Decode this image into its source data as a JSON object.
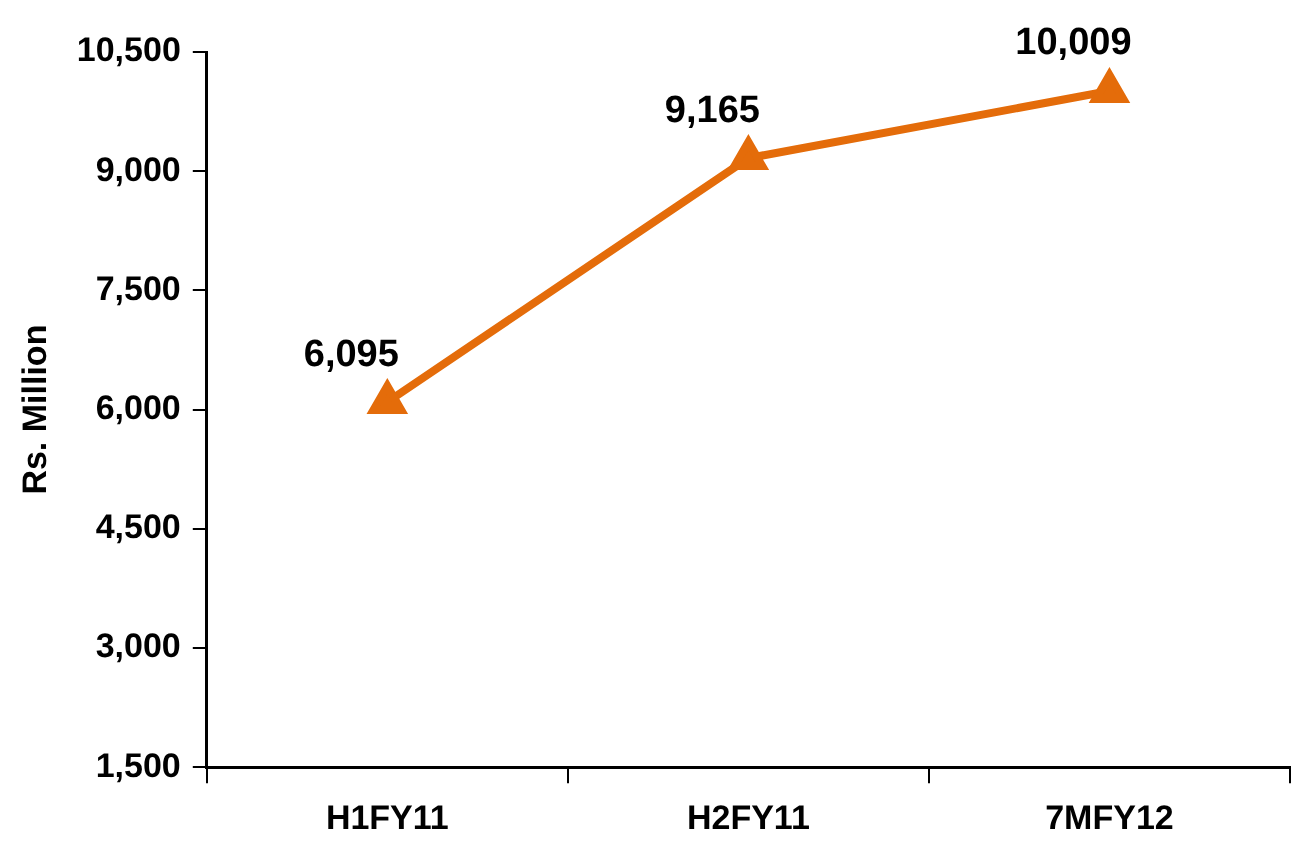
{
  "chart_data": {
    "type": "line",
    "ylabel": "Rs. Million",
    "categories": [
      "H1FY11",
      "H2FY11",
      "7MFY12"
    ],
    "values": [
      6095,
      9165,
      10009
    ],
    "value_labels": [
      "6,095",
      "9,165",
      "10,009"
    ],
    "color": "#e46c0a",
    "marker": "triangle",
    "line_style": "solid",
    "ylim": [
      1500,
      10500
    ],
    "yticks": [
      {
        "value": 1500,
        "label": "1,500"
      },
      {
        "value": 3000,
        "label": "3,000"
      },
      {
        "value": 4500,
        "label": "4,500"
      },
      {
        "value": 6000,
        "label": "6,000"
      },
      {
        "value": 7500,
        "label": "7,500"
      },
      {
        "value": 9000,
        "label": "9,000"
      },
      {
        "value": 10500,
        "label": "10,500"
      }
    ],
    "grid": false,
    "legend": false
  }
}
